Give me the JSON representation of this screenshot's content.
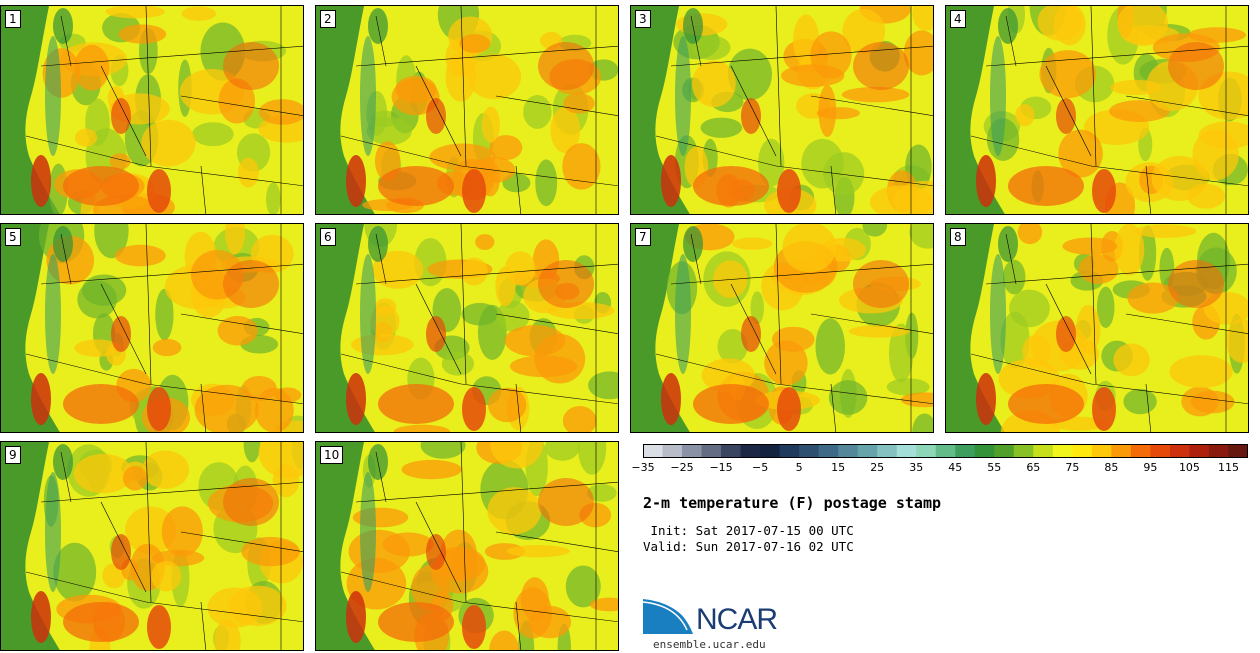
{
  "stamps": [
    "1",
    "2",
    "3",
    "4",
    "5",
    "6",
    "7",
    "8",
    "9",
    "10"
  ],
  "colorbar": {
    "colors": [
      "#dcdee6",
      "#b8bcc9",
      "#8a93a6",
      "#636c82",
      "#3a4560",
      "#1d2844",
      "#132340",
      "#1f3a5c",
      "#2e4f70",
      "#3f6a87",
      "#538799",
      "#67a3aa",
      "#84c1c0",
      "#a3dfd8",
      "#8ed6b8",
      "#64bb8a",
      "#3e9e5e",
      "#339138",
      "#52a02c",
      "#87c126",
      "#c6df1d",
      "#f2f51b",
      "#ffe90f",
      "#fdc70a",
      "#fb9a08",
      "#f46c0a",
      "#e54a0b",
      "#cc300c",
      "#ad200c",
      "#8a1a0e",
      "#661810"
    ],
    "tick_labels": [
      "−35",
      "−25",
      "−15",
      "−5",
      "5",
      "15",
      "25",
      "35",
      "45",
      "55",
      "65",
      "75",
      "85",
      "95",
      "105",
      "115"
    ]
  },
  "title": "2-m temperature (F) postage stamp",
  "init_line": " Init: Sat 2017-07-15 00 UTC",
  "valid_line": "Valid: Sun 2017-07-16 02 UTC",
  "logo_text": "NCAR",
  "url": "ensemble.ucar.edu"
}
